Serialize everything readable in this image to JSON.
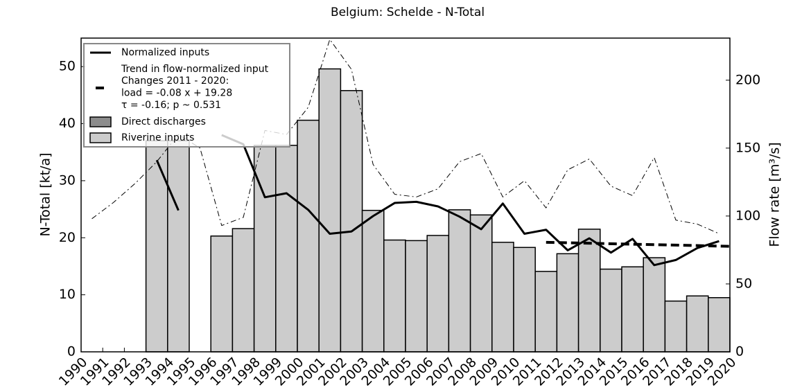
{
  "chart_data": {
    "type": "bar",
    "title": "Belgium: Schelde - N-Total",
    "ylabel": "N-Total [kt/a]",
    "y2label": "Flow rate [m³/s]",
    "xlim": [
      1990,
      2020
    ],
    "xticks": [
      1990,
      1991,
      1992,
      1993,
      1994,
      1995,
      1996,
      1997,
      1998,
      1999,
      2000,
      2001,
      2002,
      2003,
      2004,
      2005,
      2006,
      2007,
      2008,
      2009,
      2010,
      2011,
      2012,
      2013,
      2014,
      2015,
      2016,
      2017,
      2018,
      2019,
      2020
    ],
    "ylim": [
      0,
      55
    ],
    "yticks": [
      0,
      10,
      20,
      30,
      40,
      50
    ],
    "y2lim": [
      0,
      231
    ],
    "y2ticks": [
      0,
      50,
      100,
      150,
      200
    ],
    "legend": "upper left",
    "x": [
      1993,
      1994,
      1996,
      1997,
      1998,
      1999,
      2000,
      2001,
      2002,
      2003,
      2004,
      2005,
      2006,
      2007,
      2008,
      2009,
      2010,
      2011,
      2012,
      2013,
      2014,
      2015,
      2016,
      2017,
      2018,
      2019
    ],
    "series": [
      {
        "name": "Direct discharges",
        "color": "#8c8c8c",
        "values": [
          0,
          0,
          0,
          0,
          0,
          0,
          0,
          0,
          0,
          0,
          0,
          0,
          0,
          0,
          0,
          0,
          0,
          0,
          0,
          0,
          0,
          0,
          0,
          0,
          0,
          0
        ]
      },
      {
        "name": "Riverine inputs",
        "color": "#cccccc",
        "values": [
          37,
          37,
          20.3,
          21.6,
          36.2,
          36.2,
          40.6,
          49.6,
          45.8,
          24.8,
          19.6,
          19.5,
          20.4,
          24.9,
          24.0,
          19.2,
          18.3,
          14.1,
          17.2,
          21.5,
          14.5,
          14.9,
          16.5,
          8.9,
          9.8,
          9.5
        ]
      }
    ],
    "lines": [
      {
        "name": "Normalized inputs",
        "color": "#000000",
        "style": "solid",
        "x": [
          1993.5,
          1994.5,
          1995.5,
          1996.5,
          1997.5,
          1998.5,
          1999.5,
          2000.5,
          2001.5,
          2002.5,
          2003.5,
          2004.5,
          2005.5,
          2006.5,
          2007.5,
          2008.5,
          2009.5,
          2010.5,
          2011.5,
          2012.5,
          2013.5,
          2014.5,
          2015.5,
          2016.5,
          2017.5,
          2018.5,
          2019.5
        ],
        "values": [
          33.6,
          24.8,
          null,
          38.0,
          36.4,
          27.1,
          27.8,
          24.9,
          20.7,
          21.1,
          23.8,
          26.1,
          26.3,
          25.5,
          23.7,
          21.5,
          26.0,
          20.7,
          21.4,
          17.8,
          19.9,
          17.4,
          19.8,
          15.2,
          16.1,
          18.2,
          19.4
        ]
      },
      {
        "name": "Trend in flow-normalized input",
        "color": "#000000",
        "style": "dashed",
        "x": [
          2011.5,
          2020
        ],
        "values": [
          19.2,
          18.5
        ]
      },
      {
        "color": "#000000",
        "style": "dashdot",
        "axis": "y2",
        "x": [
          1990.5,
          1991.5,
          1992.5,
          1993.5,
          1994.5,
          1995.5,
          1996.5,
          1997.5,
          1998.5,
          1999.5,
          2000.5,
          2001.5,
          2002.5,
          2003.5,
          2004.5,
          2005.5,
          2006.5,
          2007.5,
          2008.5,
          2009.5,
          2010.5,
          2011.5,
          2012.5,
          2013.5,
          2014.5,
          2015.5,
          2016.5,
          2017.5,
          2018.5,
          2019.5
        ],
        "values": [
          98,
          110,
          124,
          140,
          160,
          150,
          93,
          99,
          163,
          160,
          180,
          230,
          208,
          138,
          116,
          114,
          120,
          140,
          146,
          114,
          126,
          106,
          134,
          142,
          122,
          115,
          143,
          97,
          94,
          87
        ]
      }
    ],
    "legend_note": [
      "Changes 2011 - 2020:",
      "load = -0.08 x + 19.28",
      "τ = -0.16; p ~ 0.531"
    ]
  }
}
